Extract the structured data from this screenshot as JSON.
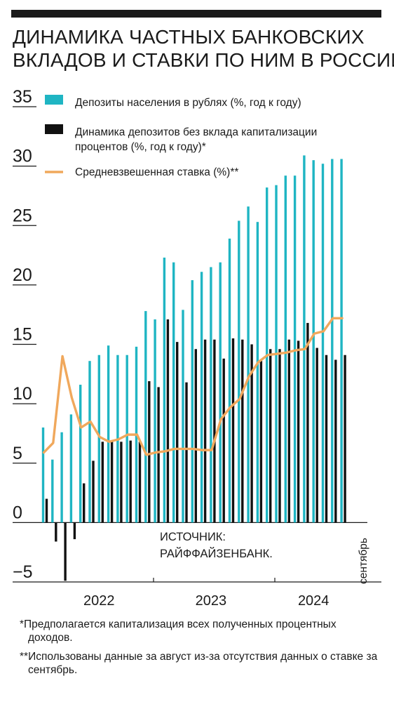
{
  "title_lines": [
    "ДИНАМИКА ЧАСТНЫХ БАНКОВСКИХ",
    "ВКЛАДОВ И СТАВКИ ПО НИМ В РОССИИ"
  ],
  "colors": {
    "deposits": "#1fb5c3",
    "ex_cap": "#111111",
    "rate": "#f0a85c",
    "text": "#1a1a1a"
  },
  "legend": [
    {
      "lines": [
        "Депозиты населения в рублях (%, год к году)"
      ]
    },
    {
      "lines": [
        "Динамика депозитов без вклада капитализации",
        "процентов (%, год к году)*"
      ]
    },
    {
      "lines": [
        "Средневзвешенная ставка (%)**"
      ]
    }
  ],
  "annotations": {
    "source_lines": [
      "ИСТОЧНИК:",
      "РАЙФФАЙЗЕНБАНК."
    ],
    "last_month": "сентябрь"
  },
  "footnotes": [
    "*Предполагается капитализация всех полученных процентных доходов.",
    "**Использованы данные за август из-за отсутствия данных о ставке за сентябрь."
  ],
  "chart_data": {
    "type": "bar",
    "ylim": [
      -5,
      35
    ],
    "yticks": [
      "35",
      "30",
      "25",
      "20",
      "15",
      "10",
      "5",
      "0",
      "−5"
    ],
    "ytick_values": [
      35,
      30,
      25,
      20,
      15,
      10,
      5,
      0,
      -5
    ],
    "year_labels": [
      "2022",
      "2023",
      "2024"
    ],
    "year_months": [
      6,
      18,
      29
    ],
    "series": [
      {
        "name": "Депозиты населения в рублях (%, год к году)",
        "kind": "bar",
        "values": [
          8.0,
          5.3,
          7.6,
          9.1,
          11.6,
          13.6,
          14.1,
          14.9,
          14.1,
          14.1,
          14.8,
          17.8,
          17.1,
          22.3,
          21.9,
          17.9,
          20.4,
          21.1,
          21.5,
          21.9,
          23.9,
          25.4,
          26.6,
          25.3,
          28.2,
          28.4,
          29.2,
          29.2,
          30.9,
          30.5,
          30.2,
          30.6,
          30.6
        ]
      },
      {
        "name": "Динамика депозитов без вклада капитализации процентов (%, год к году)*",
        "kind": "bar",
        "values": [
          2.0,
          -1.6,
          -4.9,
          -1.4,
          3.3,
          5.2,
          6.8,
          6.8,
          6.8,
          6.9,
          6.8,
          11.9,
          11.4,
          17.1,
          15.2,
          11.8,
          14.6,
          15.4,
          15.4,
          13.8,
          15.5,
          15.4,
          15.0,
          13.6,
          14.6,
          14.6,
          15.4,
          15.3,
          16.8,
          14.7,
          14.1,
          13.7,
          14.1
        ]
      },
      {
        "name": "Средневзвешенная ставка (%)**",
        "kind": "line",
        "values": [
          5.9,
          6.7,
          14.0,
          10.5,
          8.0,
          8.5,
          7.2,
          6.8,
          7.0,
          7.4,
          7.4,
          5.7,
          5.9,
          6.0,
          6.2,
          6.2,
          6.2,
          6.1,
          6.1,
          8.7,
          9.7,
          10.4,
          12.3,
          13.5,
          14.1,
          14.2,
          14.3,
          14.5,
          14.6,
          15.9,
          16.1,
          17.2,
          17.2
        ]
      }
    ]
  }
}
